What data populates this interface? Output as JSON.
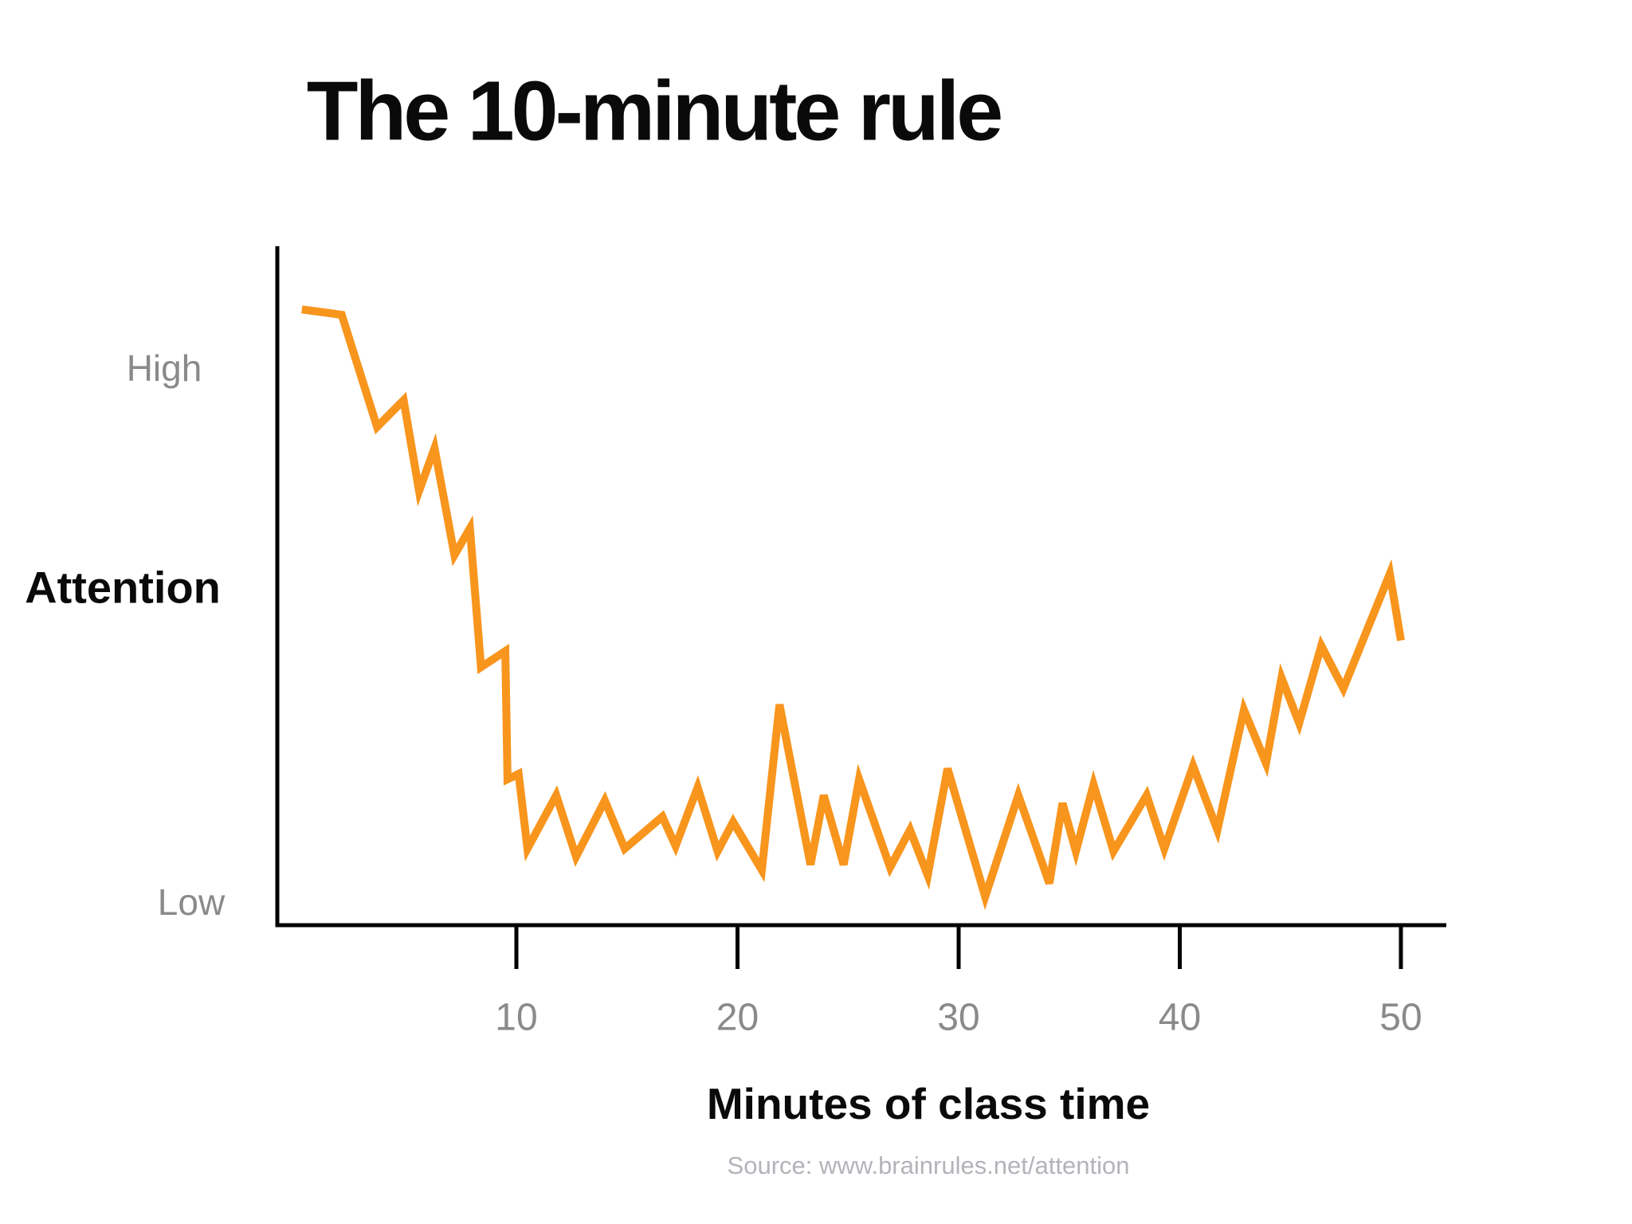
{
  "title": "The 10-minute rule",
  "source": "Source: www.brainrules.net/attention",
  "colors": {
    "line": "#F8951D",
    "axis": "#000000",
    "muted_label": "#8a8a8a",
    "title_text": "#0a0a0a",
    "source_text": "#b3b3ba"
  },
  "chart_data": {
    "type": "line",
    "title": "The 10-minute rule",
    "xlabel": "Minutes of class time",
    "ylabel": "Attention",
    "y_axis_qualitative_labels": {
      "high": "High",
      "low": "Low"
    },
    "x_ticks": [
      10,
      20,
      30,
      40,
      50
    ],
    "xlim": [
      0,
      52
    ],
    "y_scale": "qualitative: 0 = Low baseline, 100 = High baseline",
    "grid": false,
    "legend": false,
    "series": [
      {
        "name": "Attention",
        "points": [
          [
            0.3,
            111
          ],
          [
            2.1,
            110
          ],
          [
            3.7,
            89
          ],
          [
            4.9,
            94
          ],
          [
            5.6,
            77
          ],
          [
            6.3,
            85
          ],
          [
            7.2,
            65
          ],
          [
            7.9,
            70
          ],
          [
            8.4,
            44
          ],
          [
            9.5,
            47
          ],
          [
            9.6,
            23
          ],
          [
            10.1,
            24
          ],
          [
            10.5,
            10
          ],
          [
            11.8,
            20
          ],
          [
            12.7,
            8.5
          ],
          [
            14.0,
            19
          ],
          [
            14.9,
            10
          ],
          [
            16.6,
            16
          ],
          [
            17.2,
            10.5
          ],
          [
            18.2,
            21.5
          ],
          [
            19.1,
            9.5
          ],
          [
            19.8,
            15
          ],
          [
            21.1,
            6
          ],
          [
            21.9,
            37
          ],
          [
            23.3,
            7
          ],
          [
            23.9,
            20
          ],
          [
            24.8,
            7
          ],
          [
            25.5,
            23
          ],
          [
            26.9,
            6.5
          ],
          [
            27.8,
            13.5
          ],
          [
            28.6,
            5
          ],
          [
            29.5,
            25
          ],
          [
            31.2,
            1
          ],
          [
            32.7,
            20
          ],
          [
            34.1,
            3.5
          ],
          [
            34.7,
            18.5
          ],
          [
            35.3,
            9.5
          ],
          [
            36.1,
            22
          ],
          [
            37.0,
            9.5
          ],
          [
            38.5,
            20
          ],
          [
            39.3,
            10
          ],
          [
            40.6,
            25.5
          ],
          [
            41.7,
            13.5
          ],
          [
            42.9,
            36
          ],
          [
            43.9,
            26
          ],
          [
            44.6,
            42
          ],
          [
            45.4,
            33.5
          ],
          [
            46.4,
            48
          ],
          [
            47.4,
            40
          ],
          [
            49.5,
            61.5
          ],
          [
            50.0,
            49
          ]
        ]
      }
    ]
  }
}
